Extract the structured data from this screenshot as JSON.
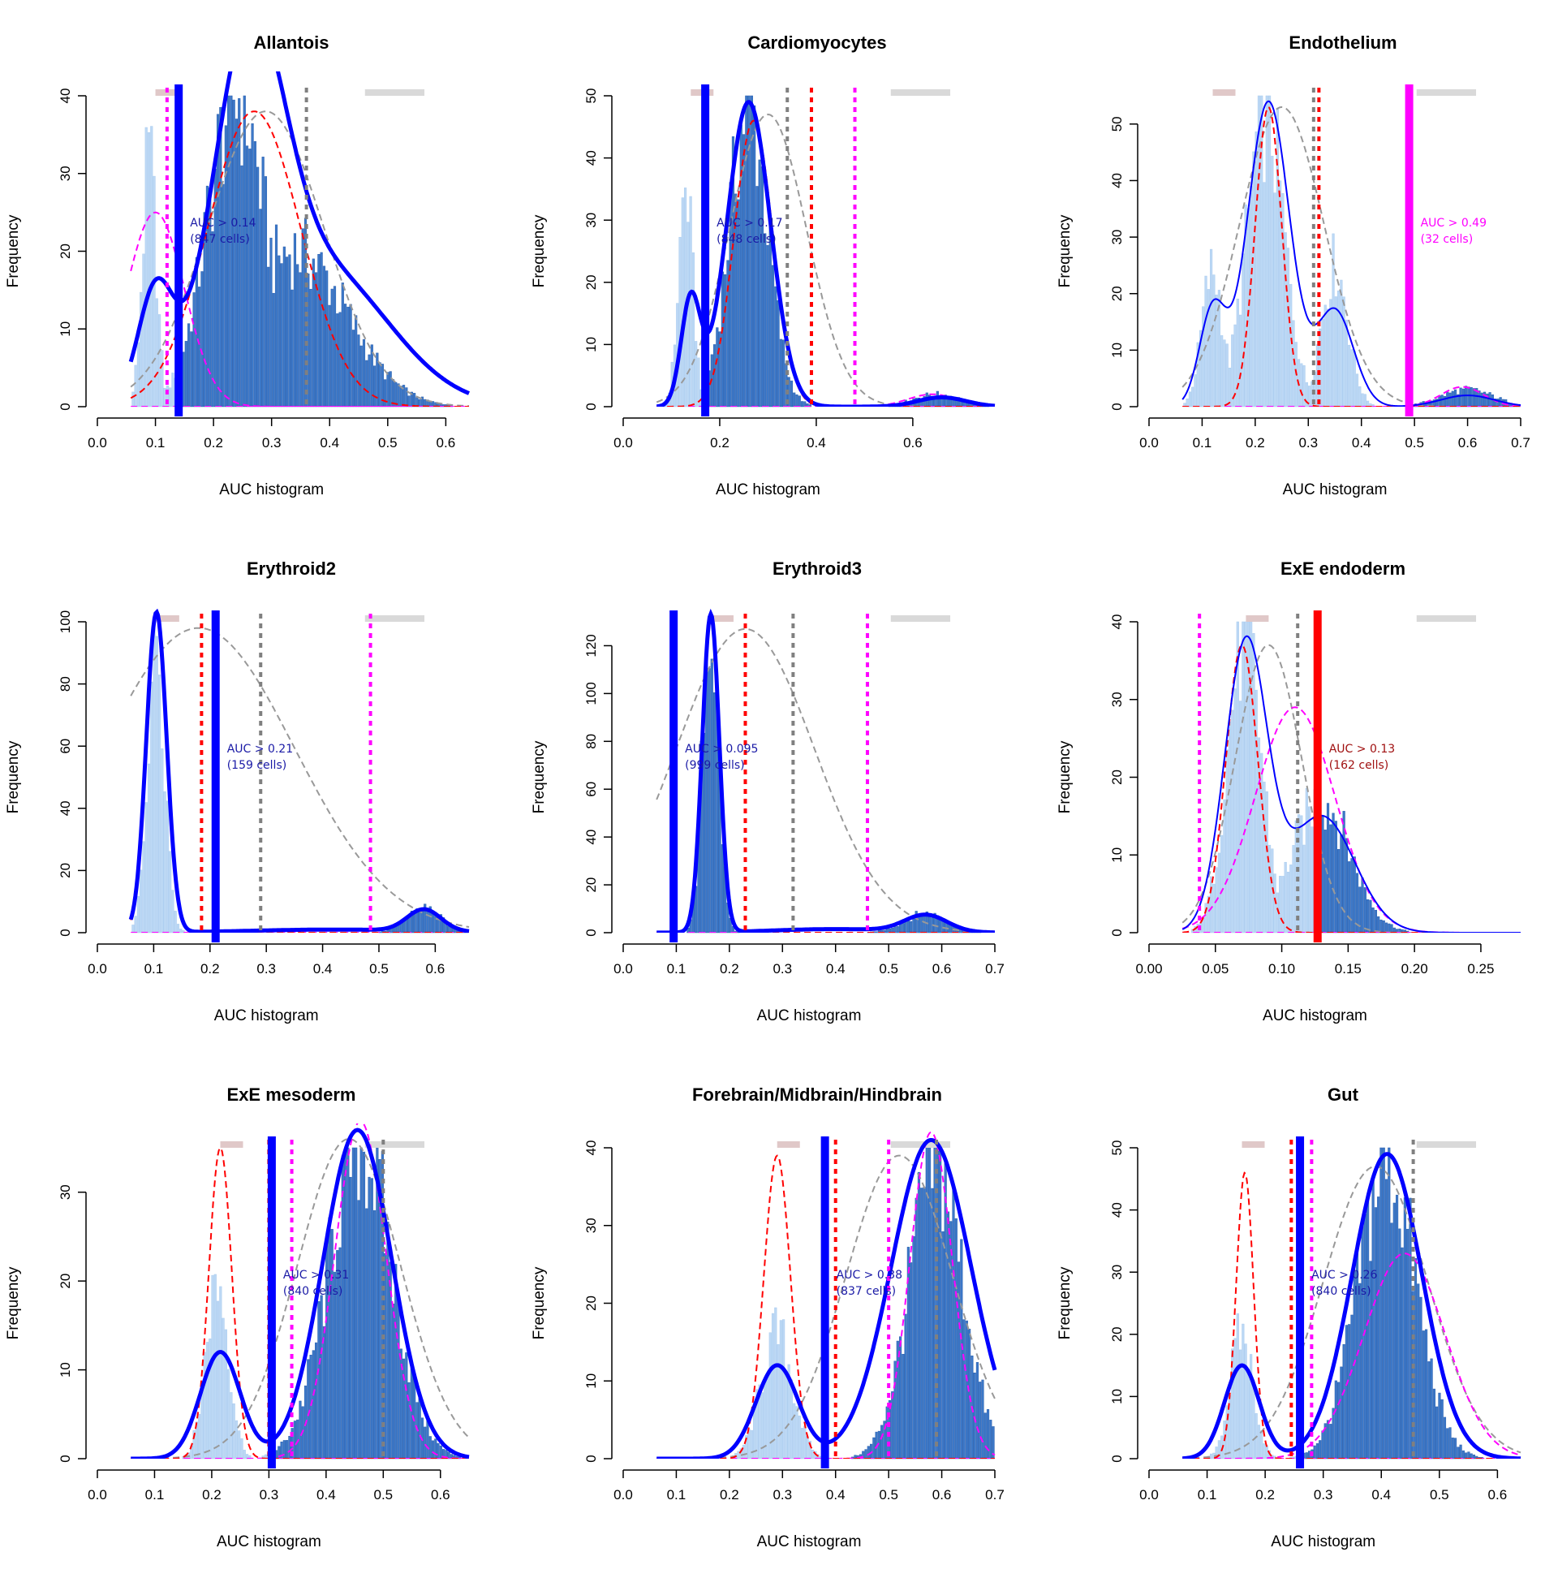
{
  "chart_data": [
    {
      "type": "histogram",
      "title": "Allantois",
      "xlabel": "AUC histogram",
      "ylabel": "Frequency",
      "xlim": [
        0.0,
        0.64
      ],
      "ylim": [
        0,
        40
      ],
      "xticks": [
        "0.0",
        "0.1",
        "0.2",
        "0.3",
        "0.4",
        "0.5",
        "0.6"
      ],
      "yticks": [
        "0",
        "10",
        "20",
        "30",
        "40"
      ],
      "threshold": 0.14,
      "annotation": [
        "AUC > 0.14",
        "(847 cells)"
      ],
      "annotation_color": "#1a1aa6",
      "threshold_color": "#0000ff",
      "hist_peaks": [
        {
          "x": 0.09,
          "y": 32,
          "s": 0.012,
          "h": 0.62
        },
        {
          "x": 0.24,
          "y": 40,
          "s": 0.05
        },
        {
          "x": 0.34,
          "y": 20,
          "s": 0.09
        }
      ],
      "red_vlines": [],
      "magenta_vlines": [
        0.12
      ],
      "gray_vlines": [
        0.36
      ],
      "fit_peaks": [
        {
          "x": 0.1,
          "h": 14,
          "s": 0.03
        },
        {
          "x": 0.26,
          "h": 40,
          "s": 0.06
        },
        {
          "x": 0.38,
          "h": 18,
          "s": 0.12
        }
      ],
      "fit_style": "thick",
      "red_dash": {
        "x": 0.27,
        "h": 38,
        "s": 0.08
      },
      "gray_dash": {
        "x": 0.29,
        "h": 38,
        "s": 0.1
      },
      "magenta_dash": {
        "x": 0.1,
        "h": 25,
        "s": 0.05
      }
    },
    {
      "type": "histogram",
      "title": "Cardiomyocytes",
      "xlabel": "AUC histogram",
      "ylabel": "Frequency",
      "xlim": [
        0.0,
        0.77
      ],
      "ylim": [
        0,
        50
      ],
      "xticks": [
        "0.0",
        "0.2",
        "0.4",
        "0.6"
      ],
      "yticks": [
        "0",
        "10",
        "20",
        "30",
        "40",
        "50"
      ],
      "threshold": 0.17,
      "annotation": [
        "AUC > 0.17",
        "(848 cells)"
      ],
      "annotation_color": "#1a1aa6",
      "threshold_color": "#0000ff",
      "hist_peaks": [
        {
          "x": 0.13,
          "y": 35,
          "s": 0.015,
          "h": 0.62
        },
        {
          "x": 0.26,
          "y": 48,
          "s": 0.04
        },
        {
          "x": 0.65,
          "y": 2,
          "s": 0.05
        }
      ],
      "red_vlines": [
        0.39
      ],
      "magenta_vlines": [
        0.48
      ],
      "gray_vlines": [
        0.34
      ],
      "fit_peaks": [
        {
          "x": 0.14,
          "h": 17,
          "s": 0.02
        },
        {
          "x": 0.26,
          "h": 49,
          "s": 0.045
        },
        {
          "x": 0.66,
          "h": 1.5,
          "s": 0.05
        }
      ],
      "fit_style": "thick",
      "red_dash": {
        "x": 0.27,
        "h": 46,
        "s": 0.04
      },
      "gray_dash": {
        "x": 0.3,
        "h": 47,
        "s": 0.08
      },
      "magenta_dash": {
        "x": 0.64,
        "h": 2,
        "s": 0.05
      }
    },
    {
      "type": "histogram",
      "title": "Endothelium",
      "xlabel": "AUC histogram",
      "ylabel": "Frequency",
      "xlim": [
        0.0,
        0.7
      ],
      "ylim": [
        0,
        55
      ],
      "xticks": [
        "0.0",
        "0.1",
        "0.2",
        "0.3",
        "0.4",
        "0.5",
        "0.6",
        "0.7"
      ],
      "yticks": [
        "0",
        "10",
        "20",
        "30",
        "40",
        "50"
      ],
      "threshold": 0.49,
      "annotation": [
        "AUC > 0.49",
        "(32 cells)"
      ],
      "annotation_color": "#ff00ff",
      "threshold_color": "#ff00ff",
      "hist_peaks": [
        {
          "x": 0.12,
          "y": 24,
          "s": 0.02,
          "h": 0.62
        },
        {
          "x": 0.22,
          "y": 52,
          "s": 0.035,
          "h": 0.62
        },
        {
          "x": 0.35,
          "y": 25,
          "s": 0.025,
          "h": 0.62
        },
        {
          "x": 0.6,
          "y": 3,
          "s": 0.05
        }
      ],
      "red_vlines": [
        0.32
      ],
      "magenta_vlines": [],
      "gray_vlines": [
        0.31
      ],
      "fit_peaks": [
        {
          "x": 0.12,
          "h": 17,
          "s": 0.025
        },
        {
          "x": 0.225,
          "h": 54,
          "s": 0.04
        },
        {
          "x": 0.35,
          "h": 17,
          "s": 0.035
        },
        {
          "x": 0.6,
          "h": 2,
          "s": 0.05
        }
      ],
      "fit_style": "thin",
      "red_dash": {
        "x": 0.225,
        "h": 53,
        "s": 0.025
      },
      "gray_dash": {
        "x": 0.25,
        "h": 53,
        "s": 0.08
      },
      "magenta_dash": {
        "x": 0.59,
        "h": 3.5,
        "s": 0.04
      }
    },
    {
      "type": "histogram",
      "title": "Erythroid2",
      "xlabel": "AUC histogram",
      "ylabel": "Frequency",
      "xlim": [
        0.0,
        0.66
      ],
      "ylim": [
        0,
        100
      ],
      "xticks": [
        "0.0",
        "0.1",
        "0.2",
        "0.3",
        "0.4",
        "0.5",
        "0.6"
      ],
      "yticks": [
        "0",
        "20",
        "40",
        "60",
        "80",
        "100"
      ],
      "threshold": 0.21,
      "annotation": [
        "AUC > 0.21",
        "(159 cells)"
      ],
      "annotation_color": "#1a1aa6",
      "threshold_color": "#0000ff",
      "hist_peaks": [
        {
          "x": 0.105,
          "y": 100,
          "s": 0.015,
          "h": 0.62
        },
        {
          "x": 0.58,
          "y": 8,
          "s": 0.03
        }
      ],
      "red_vlines": [
        0.185
      ],
      "magenta_vlines": [
        0.485
      ],
      "gray_vlines": [
        0.29
      ],
      "fit_peaks": [
        {
          "x": 0.105,
          "h": 103,
          "s": 0.018
        },
        {
          "x": 0.58,
          "h": 7,
          "s": 0.03
        },
        {
          "x": 0.42,
          "h": 1,
          "s": 0.15
        }
      ],
      "fit_style": "thick",
      "red_dash": {
        "x": 0.105,
        "h": 101,
        "s": 0.018
      },
      "gray_dash": {
        "x": 0.18,
        "h": 98,
        "s": 0.17
      },
      "magenta_dash": null
    },
    {
      "type": "histogram",
      "title": "Erythroid3",
      "xlabel": "AUC histogram",
      "ylabel": "Frequency",
      "xlim": [
        0.0,
        0.7
      ],
      "ylim": [
        0,
        130
      ],
      "xticks": [
        "0.0",
        "0.1",
        "0.2",
        "0.3",
        "0.4",
        "0.5",
        "0.6",
        "0.7"
      ],
      "yticks": [
        "0",
        "20",
        "40",
        "60",
        "80",
        "100",
        "120"
      ],
      "threshold": 0.095,
      "annotation": [
        "AUC > 0.095",
        "(999 cells)"
      ],
      "annotation_color": "#1a1aa6",
      "threshold_color": "#0000ff",
      "hist_peaks": [
        {
          "x": 0.165,
          "y": 130,
          "s": 0.015
        },
        {
          "x": 0.57,
          "y": 8,
          "s": 0.04
        }
      ],
      "red_vlines": [
        0.23
      ],
      "magenta_vlines": [
        0.46
      ],
      "gray_vlines": [
        0.32
      ],
      "fit_peaks": [
        {
          "x": 0.165,
          "h": 133,
          "s": 0.016
        },
        {
          "x": 0.57,
          "h": 7,
          "s": 0.04
        },
        {
          "x": 0.4,
          "h": 1.5,
          "s": 0.12
        }
      ],
      "fit_style": "thick",
      "red_dash": {
        "x": 0.165,
        "h": 130,
        "s": 0.016
      },
      "gray_dash": {
        "x": 0.23,
        "h": 127,
        "s": 0.13
      },
      "magenta_dash": null
    },
    {
      "type": "histogram",
      "title": "ExE endoderm",
      "xlabel": "AUC histogram",
      "ylabel": "Frequency",
      "xlim": [
        0.0,
        0.28
      ],
      "ylim": [
        0,
        40
      ],
      "xticks": [
        "0.00",
        "0.05",
        "0.10",
        "0.15",
        "0.20",
        "0.25"
      ],
      "yticks": [
        "0",
        "10",
        "20",
        "30",
        "40"
      ],
      "threshold": 0.127,
      "annotation": [
        "AUC > 0.13",
        "(162 cells)"
      ],
      "annotation_color": "#a01010",
      "threshold_color": "#ff0000",
      "hist_peaks": [
        {
          "x": 0.072,
          "y": 38,
          "s": 0.013,
          "h": 0.62
        },
        {
          "x": 0.13,
          "y": 17,
          "s": 0.022
        }
      ],
      "red_vlines": [],
      "magenta_vlines": [
        0.038
      ],
      "gray_vlines": [
        0.112
      ],
      "fit_peaks": [
        {
          "x": 0.073,
          "h": 37,
          "s": 0.016
        },
        {
          "x": 0.13,
          "h": 15,
          "s": 0.025
        }
      ],
      "fit_style": "thin",
      "red_dash": {
        "x": 0.07,
        "h": 37,
        "s": 0.012
      },
      "gray_dash": {
        "x": 0.09,
        "h": 37,
        "s": 0.025
      },
      "magenta_dash": {
        "x": 0.11,
        "h": 29,
        "s": 0.03
      }
    },
    {
      "type": "histogram",
      "title": "ExE mesoderm",
      "xlabel": "AUC histogram",
      "ylabel": "Frequency",
      "xlim": [
        0.0,
        0.65
      ],
      "ylim": [
        0,
        35
      ],
      "xticks": [
        "0.0",
        "0.1",
        "0.2",
        "0.3",
        "0.4",
        "0.5",
        "0.6"
      ],
      "yticks": [
        "0",
        "10",
        "20",
        "30"
      ],
      "threshold": 0.305,
      "annotation": [
        "AUC > 0.31",
        "(840 cells)"
      ],
      "annotation_color": "#1a1aa6",
      "threshold_color": "#0000ff",
      "hist_peaks": [
        {
          "x": 0.21,
          "y": 20,
          "s": 0.02,
          "h": 0.62
        },
        {
          "x": 0.46,
          "y": 36,
          "s": 0.055
        }
      ],
      "red_vlines": [
        0.3
      ],
      "magenta_vlines": [
        0.34
      ],
      "gray_vlines": [
        0.5
      ],
      "fit_peaks": [
        {
          "x": 0.215,
          "h": 12,
          "s": 0.035
        },
        {
          "x": 0.455,
          "h": 37,
          "s": 0.06
        }
      ],
      "fit_style": "thick",
      "red_dash": {
        "x": 0.215,
        "h": 35,
        "s": 0.02
      },
      "gray_dash": {
        "x": 0.44,
        "h": 36,
        "s": 0.09
      },
      "magenta_dash": {
        "x": 0.46,
        "h": 38,
        "s": 0.045
      }
    },
    {
      "type": "histogram",
      "title": "Forebrain/Midbrain/Hindbrain",
      "xlabel": "AUC histogram",
      "ylabel": "Frequency",
      "xlim": [
        0.0,
        0.7
      ],
      "ylim": [
        0,
        40
      ],
      "xticks": [
        "0.0",
        "0.1",
        "0.2",
        "0.3",
        "0.4",
        "0.5",
        "0.6",
        "0.7"
      ],
      "yticks": [
        "0",
        "10",
        "20",
        "30",
        "40"
      ],
      "threshold": 0.38,
      "annotation": [
        "AUC > 0.38",
        "(837 cells)"
      ],
      "annotation_color": "#1a1aa6",
      "threshold_color": "#0000ff",
      "hist_peaks": [
        {
          "x": 0.29,
          "y": 16,
          "s": 0.03,
          "h": 0.62
        },
        {
          "x": 0.59,
          "y": 38,
          "s": 0.05
        }
      ],
      "red_vlines": [
        0.4
      ],
      "magenta_vlines": [
        0.5
      ],
      "gray_vlines": [
        0.59
      ],
      "fit_peaks": [
        {
          "x": 0.29,
          "h": 12,
          "s": 0.04
        },
        {
          "x": 0.58,
          "h": 41,
          "s": 0.075
        }
      ],
      "fit_style": "thick",
      "red_dash": {
        "x": 0.29,
        "h": 39,
        "s": 0.025
      },
      "gray_dash": {
        "x": 0.52,
        "h": 39,
        "s": 0.1
      },
      "magenta_dash": {
        "x": 0.58,
        "h": 42,
        "s": 0.04
      }
    },
    {
      "type": "histogram",
      "title": "Gut",
      "xlabel": "AUC histogram",
      "ylabel": "Frequency",
      "xlim": [
        0.0,
        0.64
      ],
      "ylim": [
        0,
        50
      ],
      "xticks": [
        "0.0",
        "0.1",
        "0.2",
        "0.3",
        "0.4",
        "0.5",
        "0.6"
      ],
      "yticks": [
        "0",
        "10",
        "20",
        "30",
        "40",
        "50"
      ],
      "threshold": 0.26,
      "annotation": [
        "AUC > 0.26",
        "(840 cells)"
      ],
      "annotation_color": "#1a1aa6",
      "threshold_color": "#0000ff",
      "hist_peaks": [
        {
          "x": 0.16,
          "y": 20,
          "s": 0.02,
          "h": 0.62
        },
        {
          "x": 0.41,
          "y": 47,
          "s": 0.05
        }
      ],
      "red_vlines": [
        0.245
      ],
      "magenta_vlines": [
        0.28
      ],
      "gray_vlines": [
        0.455
      ],
      "fit_peaks": [
        {
          "x": 0.16,
          "h": 15,
          "s": 0.03
        },
        {
          "x": 0.41,
          "h": 49,
          "s": 0.06
        }
      ],
      "fit_style": "thick",
      "red_dash": {
        "x": 0.165,
        "h": 46,
        "s": 0.015
      },
      "gray_dash": {
        "x": 0.39,
        "h": 47,
        "s": 0.09
      },
      "magenta_dash": {
        "x": 0.44,
        "h": 33,
        "s": 0.07
      }
    }
  ]
}
